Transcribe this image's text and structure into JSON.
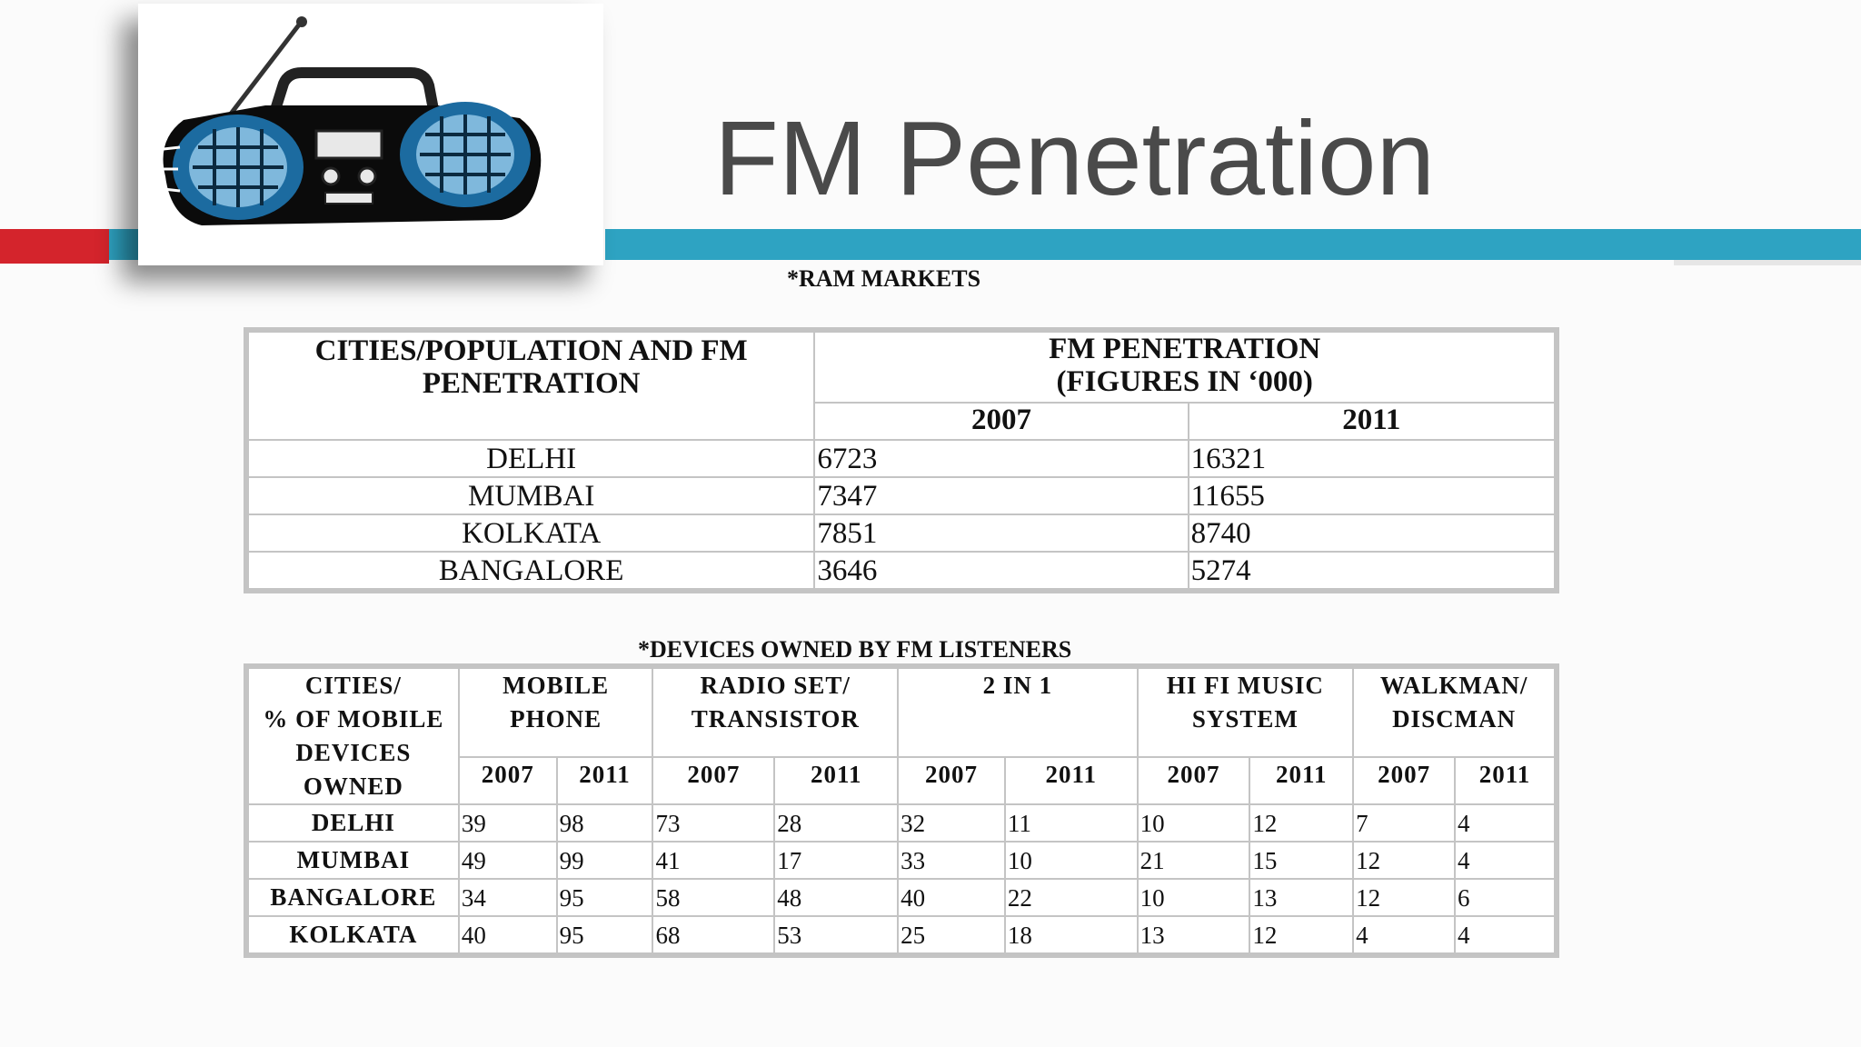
{
  "slide": {
    "title": "FM Penetration"
  },
  "ram_markets": {
    "caption": "*RAM MARKETS",
    "header_city": "CITIES/POPULATION AND FM PENETRATION",
    "header_fm_line1": "FM PENETRATION",
    "header_fm_line2": "(FIGURES IN ‘000)",
    "years": [
      "2007",
      "2011"
    ],
    "rows": [
      {
        "city": "DELHI",
        "v2007": "6723",
        "v2011": "16321"
      },
      {
        "city": "MUMBAI",
        "v2007": "7347",
        "v2011": "11655"
      },
      {
        "city": "KOLKATA",
        "v2007": "7851",
        "v2011": "8740"
      },
      {
        "city": "BANGALORE",
        "v2007": "3646",
        "v2011": "5274"
      }
    ]
  },
  "devices": {
    "caption": "*DEVICES OWNED BY FM LISTENERS",
    "header_city_lines": [
      "CITIES/",
      "% OF MOBILE",
      "DEVICES",
      "OWNED"
    ],
    "groups": [
      {
        "line1": "MOBILE",
        "line2": "PHONE"
      },
      {
        "line1": "RADIO SET/",
        "line2": "TRANSISTOR"
      },
      {
        "line1": "2 IN 1",
        "line2": ""
      },
      {
        "line1": "HI FI MUSIC",
        "line2": "SYSTEM"
      },
      {
        "line1": "WALKMAN/",
        "line2": "DISCMAN"
      }
    ],
    "years": [
      "2007",
      "2011"
    ],
    "rows": [
      {
        "city": "DELHI",
        "values": [
          "39",
          "98",
          "73",
          "28",
          "32",
          "11",
          "10",
          "12",
          "7",
          "4"
        ]
      },
      {
        "city": "MUMBAI",
        "values": [
          "49",
          "99",
          "41",
          "17",
          "33",
          "10",
          "21",
          "15",
          "12",
          "4"
        ]
      },
      {
        "city": "BANGALORE",
        "values": [
          "34",
          "95",
          "58",
          "48",
          "40",
          "22",
          "10",
          "13",
          "12",
          "6"
        ]
      },
      {
        "city": "KOLKATA",
        "values": [
          "40",
          "95",
          "68",
          "53",
          "25",
          "18",
          "13",
          "12",
          "4",
          "4"
        ]
      }
    ]
  },
  "colors": {
    "accent_blue": "#2ea3c2",
    "accent_red": "#d4242c",
    "title_gray": "#4a4a4a"
  },
  "image": {
    "icon": "boombox-radio-icon"
  }
}
